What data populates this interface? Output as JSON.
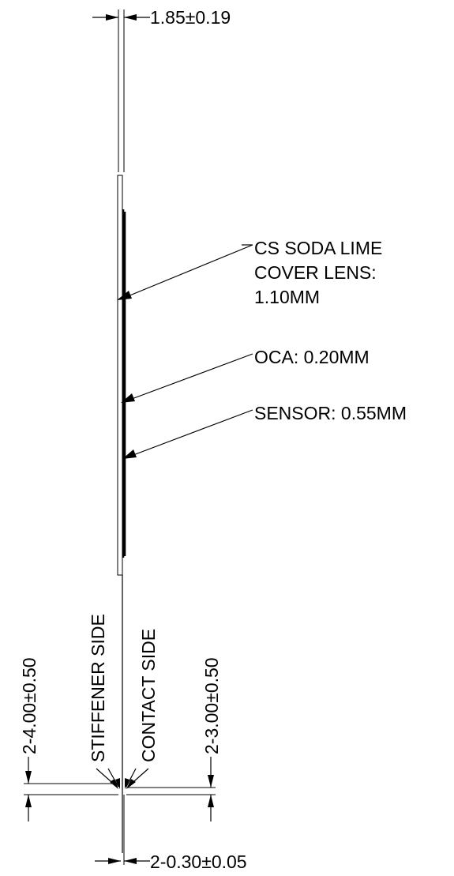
{
  "dimensions": {
    "top_thickness": "1.85±0.19",
    "stiffener_offset": "2-4.00±0.50",
    "contact_offset": "2-3.00±0.50",
    "tail_thickness": "2-0.30±0.05"
  },
  "callouts": {
    "cover_lens": [
      "CS SODA LIME",
      "COVER LENS:",
      "1.10MM"
    ],
    "oca": "OCA: 0.20MM",
    "sensor": "SENSOR: 0.55MM"
  },
  "sides": {
    "stiffener": "STIFFENER SIDE",
    "contact": "CONTACT SIDE"
  }
}
